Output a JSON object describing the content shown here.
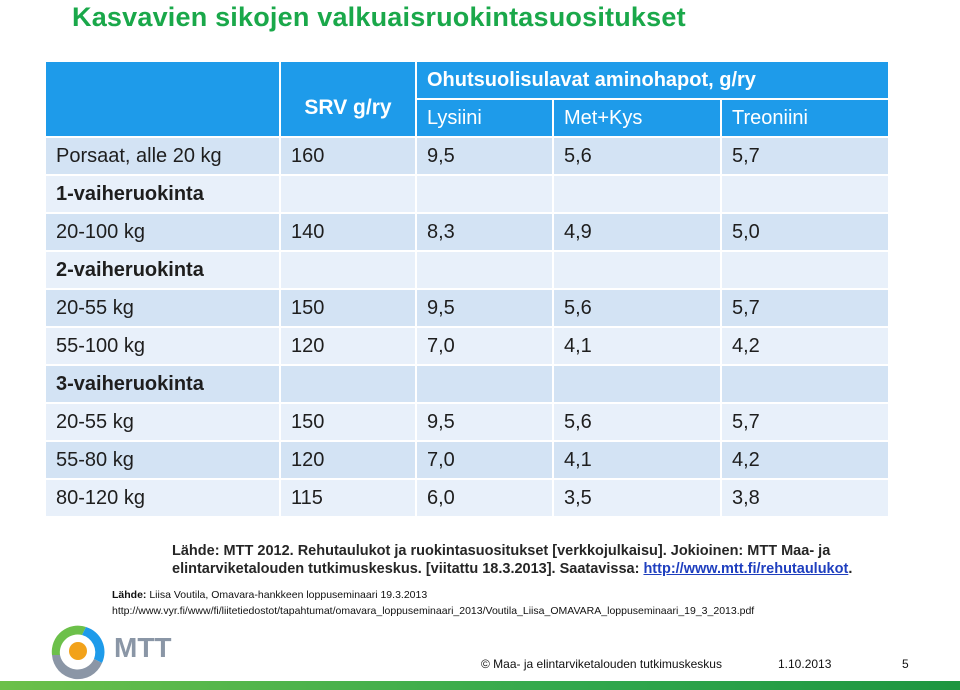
{
  "title": "Kasvavien sikojen valkuaisruokintasuositukset",
  "table": {
    "header": {
      "srv": "SRV g/ry",
      "amino": "Ohutsuolisulavat aminohapot, g/ry",
      "lysiini": "Lysiini",
      "metkys": "Met+Kys",
      "treoniini": "Treoniini"
    },
    "rows": [
      {
        "label": "Porsaat, alle 20 kg",
        "srv": "160",
        "lys": "9,5",
        "metkys": "5,6",
        "treo": "5,7"
      },
      {
        "label": "1-vaiheruokinta",
        "srv": "",
        "lys": "",
        "metkys": "",
        "treo": ""
      },
      {
        "label": "20-100 kg",
        "srv": "140",
        "lys": "8,3",
        "metkys": "4,9",
        "treo": "5,0"
      },
      {
        "label": "2-vaiheruokinta",
        "srv": "",
        "lys": "",
        "metkys": "",
        "treo": ""
      },
      {
        "label": "20-55 kg",
        "srv": "150",
        "lys": "9,5",
        "metkys": "5,6",
        "treo": "5,7"
      },
      {
        "label": "55-100 kg",
        "srv": "120",
        "lys": "7,0",
        "metkys": "4,1",
        "treo": "4,2"
      },
      {
        "label": "3-vaiheruokinta",
        "srv": "",
        "lys": "",
        "metkys": "",
        "treo": ""
      },
      {
        "label": "20-55 kg",
        "srv": "150",
        "lys": "9,5",
        "metkys": "5,6",
        "treo": "5,7"
      },
      {
        "label": "55-80 kg",
        "srv": "120",
        "lys": "7,0",
        "metkys": "4,1",
        "treo": "4,2"
      },
      {
        "label": "80-120 kg",
        "srv": "115",
        "lys": "6,0",
        "metkys": "3,5",
        "treo": "3,8"
      }
    ]
  },
  "source_main": {
    "text": "Lähde: MTT 2012. Rehutaulukot ja ruokintasuositukset [verkkojulkaisu]. Jokioinen: MTT Maa- ja elintarviketalouden tutkimuskeskus. [viitattu 18.3.2013]. Saatavissa: ",
    "link": "http://www.mtt.fi/rehutaulukot",
    "end": "."
  },
  "lahde": {
    "label": "Lähde:",
    "text": " Liisa Voutila, Omavara-hankkeen loppuseminaari 19.3.2013"
  },
  "url": "http://www.vyr.fi/www/fi/liitetiedostot/tapahtumat/omavara_loppuseminaari_2013/Voutila_Liisa_OMAVARA_loppuseminaari_19_3_2013.pdf",
  "footer": {
    "org": "© Maa- ja elintarviketalouden tutkimuskeskus",
    "date": "1.10.2013",
    "page": "5"
  },
  "logo": {
    "text": "MTT",
    "icon": "mtt-swirl-logo"
  },
  "colors": {
    "title": "#1aa84a",
    "header": "#1e9bea",
    "row_odd": "#d3e3f4",
    "row_even": "#e8f0fa",
    "footer_bar": "#31a84d"
  }
}
